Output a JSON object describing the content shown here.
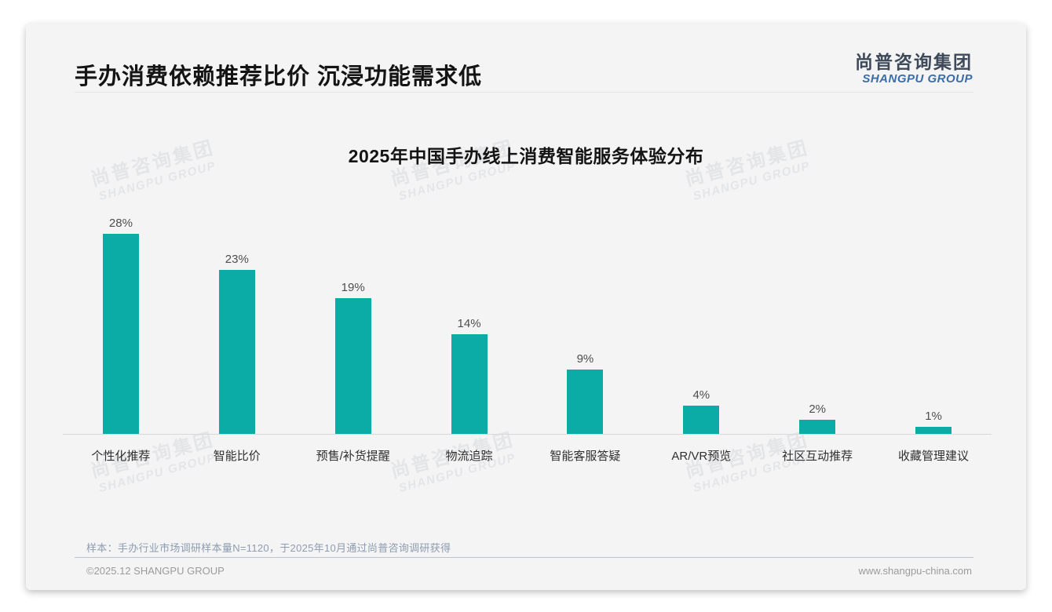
{
  "header": {
    "title": "手办消费依赖推荐比价 沉浸功能需求低",
    "logo_cn": "尚普咨询集团",
    "logo_en": "SHANGPU GROUP"
  },
  "watermark": {
    "cn": "尚普咨询集团",
    "en": "SHANGPU GROUP"
  },
  "chart_data": {
    "type": "bar",
    "title": "2025年中国手办线上消费智能服务体验分布",
    "categories": [
      "个性化推荐",
      "智能比价",
      "预售/补货提醒",
      "物流追踪",
      "智能客服答疑",
      "AR/VR预览",
      "社区互动推荐",
      "收藏管理建议"
    ],
    "values": [
      28,
      23,
      19,
      14,
      9,
      4,
      2,
      1
    ],
    "value_labels": [
      "28%",
      "23%",
      "19%",
      "14%",
      "9%",
      "4%",
      "2%",
      "1%"
    ],
    "unit": "%",
    "bar_color": "#0baca5",
    "ylim": [
      0,
      30
    ],
    "grid": false,
    "legend": "none",
    "xlabel": "",
    "ylabel": ""
  },
  "footnote": "样本：手办行业市场调研样本量N=1120，于2025年10月通过尚普咨询调研获得",
  "footer": {
    "left": "©2025.12 SHANGPU GROUP",
    "right": "www.shangpu-china.com"
  }
}
